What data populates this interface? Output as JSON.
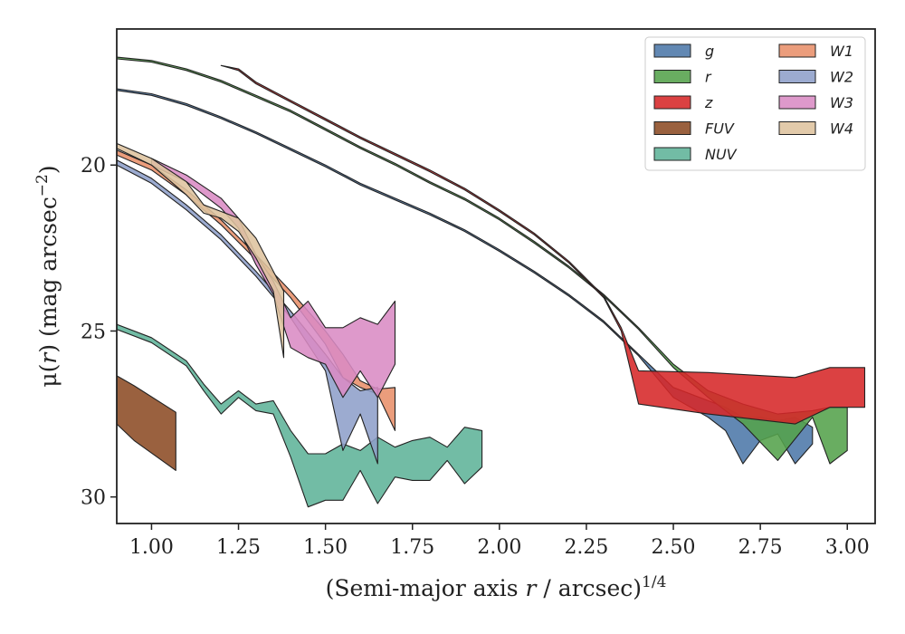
{
  "chart_data": {
    "type": "area",
    "xlabel_main": "(Semi-major axis ",
    "xlabel_var": "r",
    "xlabel_rest": " / arcsec)",
    "xlabel_sup": "1/4",
    "ylabel_main": "μ(",
    "ylabel_var": "r",
    "ylabel_rest": ") (mag arcsec",
    "ylabel_sup": "−2",
    "ylabel_end": ")",
    "xlim": [
      0.9,
      3.08
    ],
    "ylim": [
      30.8,
      15.9
    ],
    "y_inverted": true,
    "xticks": [
      "1.00",
      "1.25",
      "1.50",
      "1.75",
      "2.00",
      "2.25",
      "2.50",
      "2.75",
      "3.00"
    ],
    "xtick_values": [
      1.0,
      1.25,
      1.5,
      1.75,
      2.0,
      2.25,
      2.5,
      2.75,
      3.0
    ],
    "yticks": [
      "20",
      "25",
      "30"
    ],
    "ytick_values": [
      20,
      25,
      30
    ],
    "grid": false,
    "legend_placement": "top-right",
    "legend_columns": 2,
    "series": [
      {
        "name": "g",
        "color": "#4c78a8",
        "x": [
          0.9,
          1.0,
          1.1,
          1.2,
          1.3,
          1.4,
          1.5,
          1.6,
          1.7,
          1.8,
          1.9,
          2.0,
          2.1,
          2.2,
          2.3,
          2.4,
          2.5,
          2.6,
          2.65,
          2.7,
          2.75,
          2.8,
          2.85,
          2.9
        ],
        "top": [
          17.7,
          17.85,
          18.15,
          18.55,
          19.0,
          19.5,
          20.0,
          20.55,
          21.0,
          21.45,
          21.95,
          22.55,
          23.2,
          23.9,
          24.7,
          25.7,
          26.7,
          27.1,
          27.3,
          27.6,
          27.6,
          27.7,
          27.6,
          27.9
        ],
        "bot": [
          17.75,
          17.9,
          18.2,
          18.6,
          19.05,
          19.55,
          20.05,
          20.6,
          21.05,
          21.5,
          22.0,
          22.6,
          23.25,
          23.95,
          24.75,
          25.75,
          27.0,
          27.6,
          28.0,
          29.0,
          28.3,
          28.1,
          29.0,
          28.4
        ]
      },
      {
        "name": "r",
        "color": "#54a24b",
        "x": [
          0.9,
          1.0,
          1.1,
          1.2,
          1.3,
          1.4,
          1.5,
          1.6,
          1.7,
          1.8,
          1.9,
          2.0,
          2.1,
          2.2,
          2.3,
          2.4,
          2.5,
          2.6,
          2.7,
          2.8,
          2.9,
          2.95,
          3.0
        ],
        "top": [
          16.75,
          16.85,
          17.1,
          17.45,
          17.9,
          18.35,
          18.9,
          19.45,
          19.95,
          20.5,
          21.0,
          21.6,
          22.3,
          23.05,
          23.9,
          24.9,
          26.0,
          26.8,
          27.2,
          27.5,
          27.4,
          27.3,
          27.3
        ],
        "bot": [
          16.8,
          16.9,
          17.15,
          17.5,
          17.95,
          18.4,
          18.95,
          19.5,
          20.0,
          20.55,
          21.05,
          21.65,
          22.35,
          23.1,
          23.95,
          24.95,
          26.1,
          27.0,
          27.8,
          28.9,
          27.6,
          29.0,
          28.6
        ]
      },
      {
        "name": "z",
        "color": "#d62728",
        "x": [
          1.2,
          1.25,
          1.3,
          1.4,
          1.5,
          1.6,
          1.7,
          1.8,
          1.9,
          2.0,
          2.1,
          2.2,
          2.3,
          2.35,
          2.4,
          2.6,
          2.85,
          2.95,
          3.05
        ],
        "top": [
          17.0,
          17.1,
          17.5,
          18.05,
          18.6,
          19.15,
          19.65,
          20.15,
          20.7,
          21.35,
          22.05,
          22.9,
          23.95,
          24.9,
          26.2,
          26.25,
          26.4,
          26.1,
          26.1
        ],
        "bot": [
          17.0,
          17.15,
          17.55,
          18.1,
          18.65,
          19.2,
          19.7,
          20.2,
          20.75,
          21.4,
          22.1,
          22.95,
          24.0,
          25.0,
          27.2,
          27.5,
          27.8,
          27.3,
          27.3
        ]
      },
      {
        "name": "FUV",
        "color": "#8c4b24",
        "x": [
          0.9,
          0.95,
          1.07
        ],
        "top": [
          26.35,
          26.65,
          27.45
        ],
        "bot": [
          27.8,
          28.3,
          29.2
        ]
      },
      {
        "name": "NUV",
        "color": "#5fb399",
        "x": [
          0.9,
          1.0,
          1.1,
          1.15,
          1.2,
          1.25,
          1.3,
          1.35,
          1.4,
          1.45,
          1.5,
          1.55,
          1.6,
          1.65,
          1.7,
          1.75,
          1.8,
          1.85,
          1.9,
          1.95
        ],
        "top": [
          24.8,
          25.2,
          25.9,
          26.6,
          27.2,
          26.8,
          27.2,
          27.1,
          28.0,
          28.7,
          28.7,
          28.4,
          28.6,
          28.2,
          28.5,
          28.3,
          28.2,
          28.5,
          27.9,
          28.0
        ],
        "bot": [
          24.95,
          25.35,
          26.05,
          26.8,
          27.5,
          27.0,
          27.4,
          27.5,
          28.8,
          30.3,
          30.1,
          30.1,
          29.2,
          30.2,
          29.4,
          29.5,
          29.5,
          28.9,
          29.6,
          29.1
        ]
      },
      {
        "name": "W1",
        "color": "#e88f6a",
        "x": [
          0.9,
          1.0,
          1.1,
          1.2,
          1.3,
          1.4,
          1.5,
          1.55,
          1.6,
          1.65,
          1.7
        ],
        "top": [
          19.55,
          20.0,
          20.75,
          21.65,
          22.7,
          23.8,
          25.0,
          25.7,
          26.5,
          26.75,
          26.7
        ],
        "bot": [
          19.7,
          20.15,
          20.9,
          21.8,
          22.85,
          24.0,
          25.4,
          26.4,
          26.7,
          26.9,
          28.0
        ]
      },
      {
        "name": "W2",
        "color": "#8e9fca",
        "x": [
          0.9,
          1.0,
          1.1,
          1.2,
          1.3,
          1.4,
          1.5,
          1.55,
          1.6,
          1.65
        ],
        "top": [
          19.85,
          20.4,
          21.2,
          22.1,
          23.2,
          24.4,
          25.7,
          26.4,
          26.8,
          26.7
        ],
        "bot": [
          20.0,
          20.55,
          21.35,
          22.25,
          23.35,
          24.6,
          26.2,
          28.6,
          27.5,
          29.0
        ]
      },
      {
        "name": "W3",
        "color": "#d98bc4",
        "x": [
          1.0,
          1.1,
          1.2,
          1.25,
          1.3,
          1.35,
          1.4,
          1.45,
          1.5,
          1.55,
          1.6,
          1.65,
          1.7
        ],
        "top": [
          19.8,
          20.3,
          21.0,
          21.6,
          22.7,
          23.5,
          24.6,
          24.1,
          24.9,
          24.9,
          24.6,
          24.8,
          24.1
        ],
        "bot": [
          20.0,
          20.5,
          21.3,
          21.9,
          23.0,
          23.9,
          25.5,
          25.8,
          26.0,
          27.0,
          26.2,
          27.0,
          26.0
        ]
      },
      {
        "name": "W4",
        "color": "#dec39e",
        "x": [
          0.9,
          1.0,
          1.1,
          1.15,
          1.2,
          1.25,
          1.3,
          1.35,
          1.38
        ],
        "top": [
          19.35,
          19.8,
          20.5,
          21.2,
          21.4,
          21.6,
          22.2,
          23.2,
          23.8
        ],
        "bot": [
          19.5,
          20.0,
          20.9,
          21.45,
          21.6,
          22.0,
          22.8,
          23.8,
          25.8
        ]
      }
    ]
  }
}
